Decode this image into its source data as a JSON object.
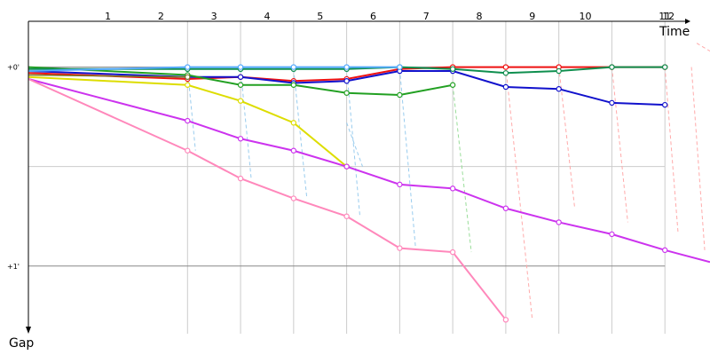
{
  "chart_data": {
    "type": "line",
    "xlabel": "Time",
    "ylabel": "Gap",
    "lap_labels": [
      "1",
      "2",
      "3",
      "4",
      "5",
      "6",
      "7",
      "8",
      "9",
      "10",
      "11",
      "12"
    ],
    "y_ticks": [
      {
        "value": 0,
        "label": "+0'"
      },
      {
        "value": 1,
        "label": "+1'"
      }
    ],
    "y_grid": [
      0,
      0.5,
      1
    ],
    "ylim": [
      -0.23,
      1.34
    ],
    "xlim": [
      0,
      12.85
    ],
    "grid": true,
    "series": [
      {
        "color": "#ee1111",
        "width": 2,
        "points": [
          [
            0,
            0.03
          ],
          [
            3,
            0.06
          ],
          [
            4,
            0.05
          ],
          [
            5,
            0.07
          ],
          [
            6,
            0.06
          ],
          [
            7,
            0.01
          ],
          [
            8,
            0.0
          ],
          [
            9,
            0.0
          ],
          [
            10,
            0.0
          ],
          [
            11,
            0.0
          ],
          [
            12,
            0.0
          ]
        ]
      },
      {
        "color": "#1111cc",
        "width": 2,
        "points": [
          [
            0,
            0.02
          ],
          [
            3,
            0.05
          ],
          [
            4,
            0.05
          ],
          [
            5,
            0.08
          ],
          [
            6,
            0.07
          ],
          [
            7,
            0.02
          ],
          [
            8,
            0.02
          ],
          [
            9,
            0.1
          ],
          [
            10,
            0.11
          ],
          [
            11,
            0.18
          ],
          [
            12,
            0.19
          ]
        ]
      },
      {
        "color": "#22a022",
        "width": 2,
        "points": [
          [
            0,
            0.0
          ],
          [
            3,
            0.04
          ],
          [
            4,
            0.09
          ],
          [
            5,
            0.09
          ],
          [
            6,
            0.13
          ],
          [
            7,
            0.14
          ],
          [
            8,
            0.09
          ]
        ]
      },
      {
        "color": "#0f8f4f",
        "width": 2,
        "points": [
          [
            0,
            0.01
          ],
          [
            3,
            0.01
          ],
          [
            4,
            0.01
          ],
          [
            5,
            0.01
          ],
          [
            6,
            0.01
          ],
          [
            7,
            0.0
          ],
          [
            8,
            0.01
          ],
          [
            9,
            0.03
          ],
          [
            10,
            0.02
          ],
          [
            11,
            0.0
          ],
          [
            12,
            0.0
          ]
        ]
      },
      {
        "color": "#55aaff",
        "width": 2,
        "points": [
          [
            0,
            0.02
          ],
          [
            3,
            0.0
          ],
          [
            4,
            0.0
          ],
          [
            5,
            0.0
          ],
          [
            6,
            0.0
          ],
          [
            7,
            0.0
          ]
        ]
      },
      {
        "color": "#7a7a22",
        "width": 1.5,
        "points": [
          [
            0,
            0.04
          ],
          [
            3,
            0.05
          ]
        ]
      },
      {
        "color": "#dddd00",
        "width": 2,
        "points": [
          [
            0,
            0.05
          ],
          [
            3,
            0.09
          ],
          [
            4,
            0.17
          ],
          [
            5,
            0.28
          ],
          [
            6,
            0.5
          ]
        ]
      },
      {
        "color": "#cc33ee",
        "width": 2,
        "points": [
          [
            0,
            0.06
          ],
          [
            3,
            0.27
          ],
          [
            4,
            0.36
          ],
          [
            5,
            0.42
          ],
          [
            6,
            0.5
          ],
          [
            7,
            0.59
          ],
          [
            8,
            0.61
          ],
          [
            9,
            0.71
          ],
          [
            10,
            0.78
          ],
          [
            11,
            0.84
          ],
          [
            12,
            0.92
          ],
          [
            12.85,
            0.98
          ]
        ]
      },
      {
        "color": "#ff88bb",
        "width": 2,
        "points": [
          [
            0,
            0.06
          ],
          [
            3,
            0.42
          ],
          [
            4,
            0.56
          ],
          [
            5,
            0.66
          ],
          [
            6,
            0.75
          ],
          [
            7,
            0.91
          ],
          [
            8,
            0.93
          ],
          [
            9,
            1.27
          ]
        ]
      }
    ],
    "pit_stops": [
      {
        "color": "#99ccee",
        "from": [
          3,
          0.01
        ],
        "to": [
          3.15,
          0.42
        ]
      },
      {
        "color": "#99ccee",
        "from": [
          4,
          0.01
        ],
        "to": [
          4.2,
          0.56
        ]
      },
      {
        "color": "#99ccee",
        "from": [
          5,
          0.01
        ],
        "to": [
          5.25,
          0.66
        ]
      },
      {
        "color": "#99ccee",
        "from": [
          6,
          0.01
        ],
        "to": [
          6.25,
          0.75
        ]
      },
      {
        "color": "#99ccee",
        "from": [
          6,
          0.28
        ],
        "to": [
          6.3,
          0.5
        ]
      },
      {
        "color": "#99ccee",
        "from": [
          7,
          0.01
        ],
        "to": [
          7.3,
          0.91
        ]
      },
      {
        "color": "#99dd99",
        "from": [
          8,
          0.09
        ],
        "to": [
          8.35,
          0.93
        ]
      },
      {
        "color": "#ffaaaa",
        "from": [
          9,
          0.0
        ],
        "to": [
          9.5,
          1.27
        ]
      },
      {
        "color": "#ffaaaa",
        "from": [
          10,
          0.0
        ],
        "to": [
          10.3,
          0.71
        ]
      },
      {
        "color": "#ffaaaa",
        "from": [
          11,
          0.0
        ],
        "to": [
          11.3,
          0.78
        ]
      },
      {
        "color": "#ffaaaa",
        "from": [
          12,
          0.0
        ],
        "to": [
          12.25,
          0.84
        ]
      },
      {
        "color": "#ffaaaa",
        "from": [
          12.5,
          0.0
        ],
        "to": [
          12.75,
          0.92
        ]
      },
      {
        "color": "#ffaaaa",
        "from": [
          12.6,
          -0.12
        ],
        "to": [
          12.85,
          -0.08
        ]
      }
    ]
  }
}
